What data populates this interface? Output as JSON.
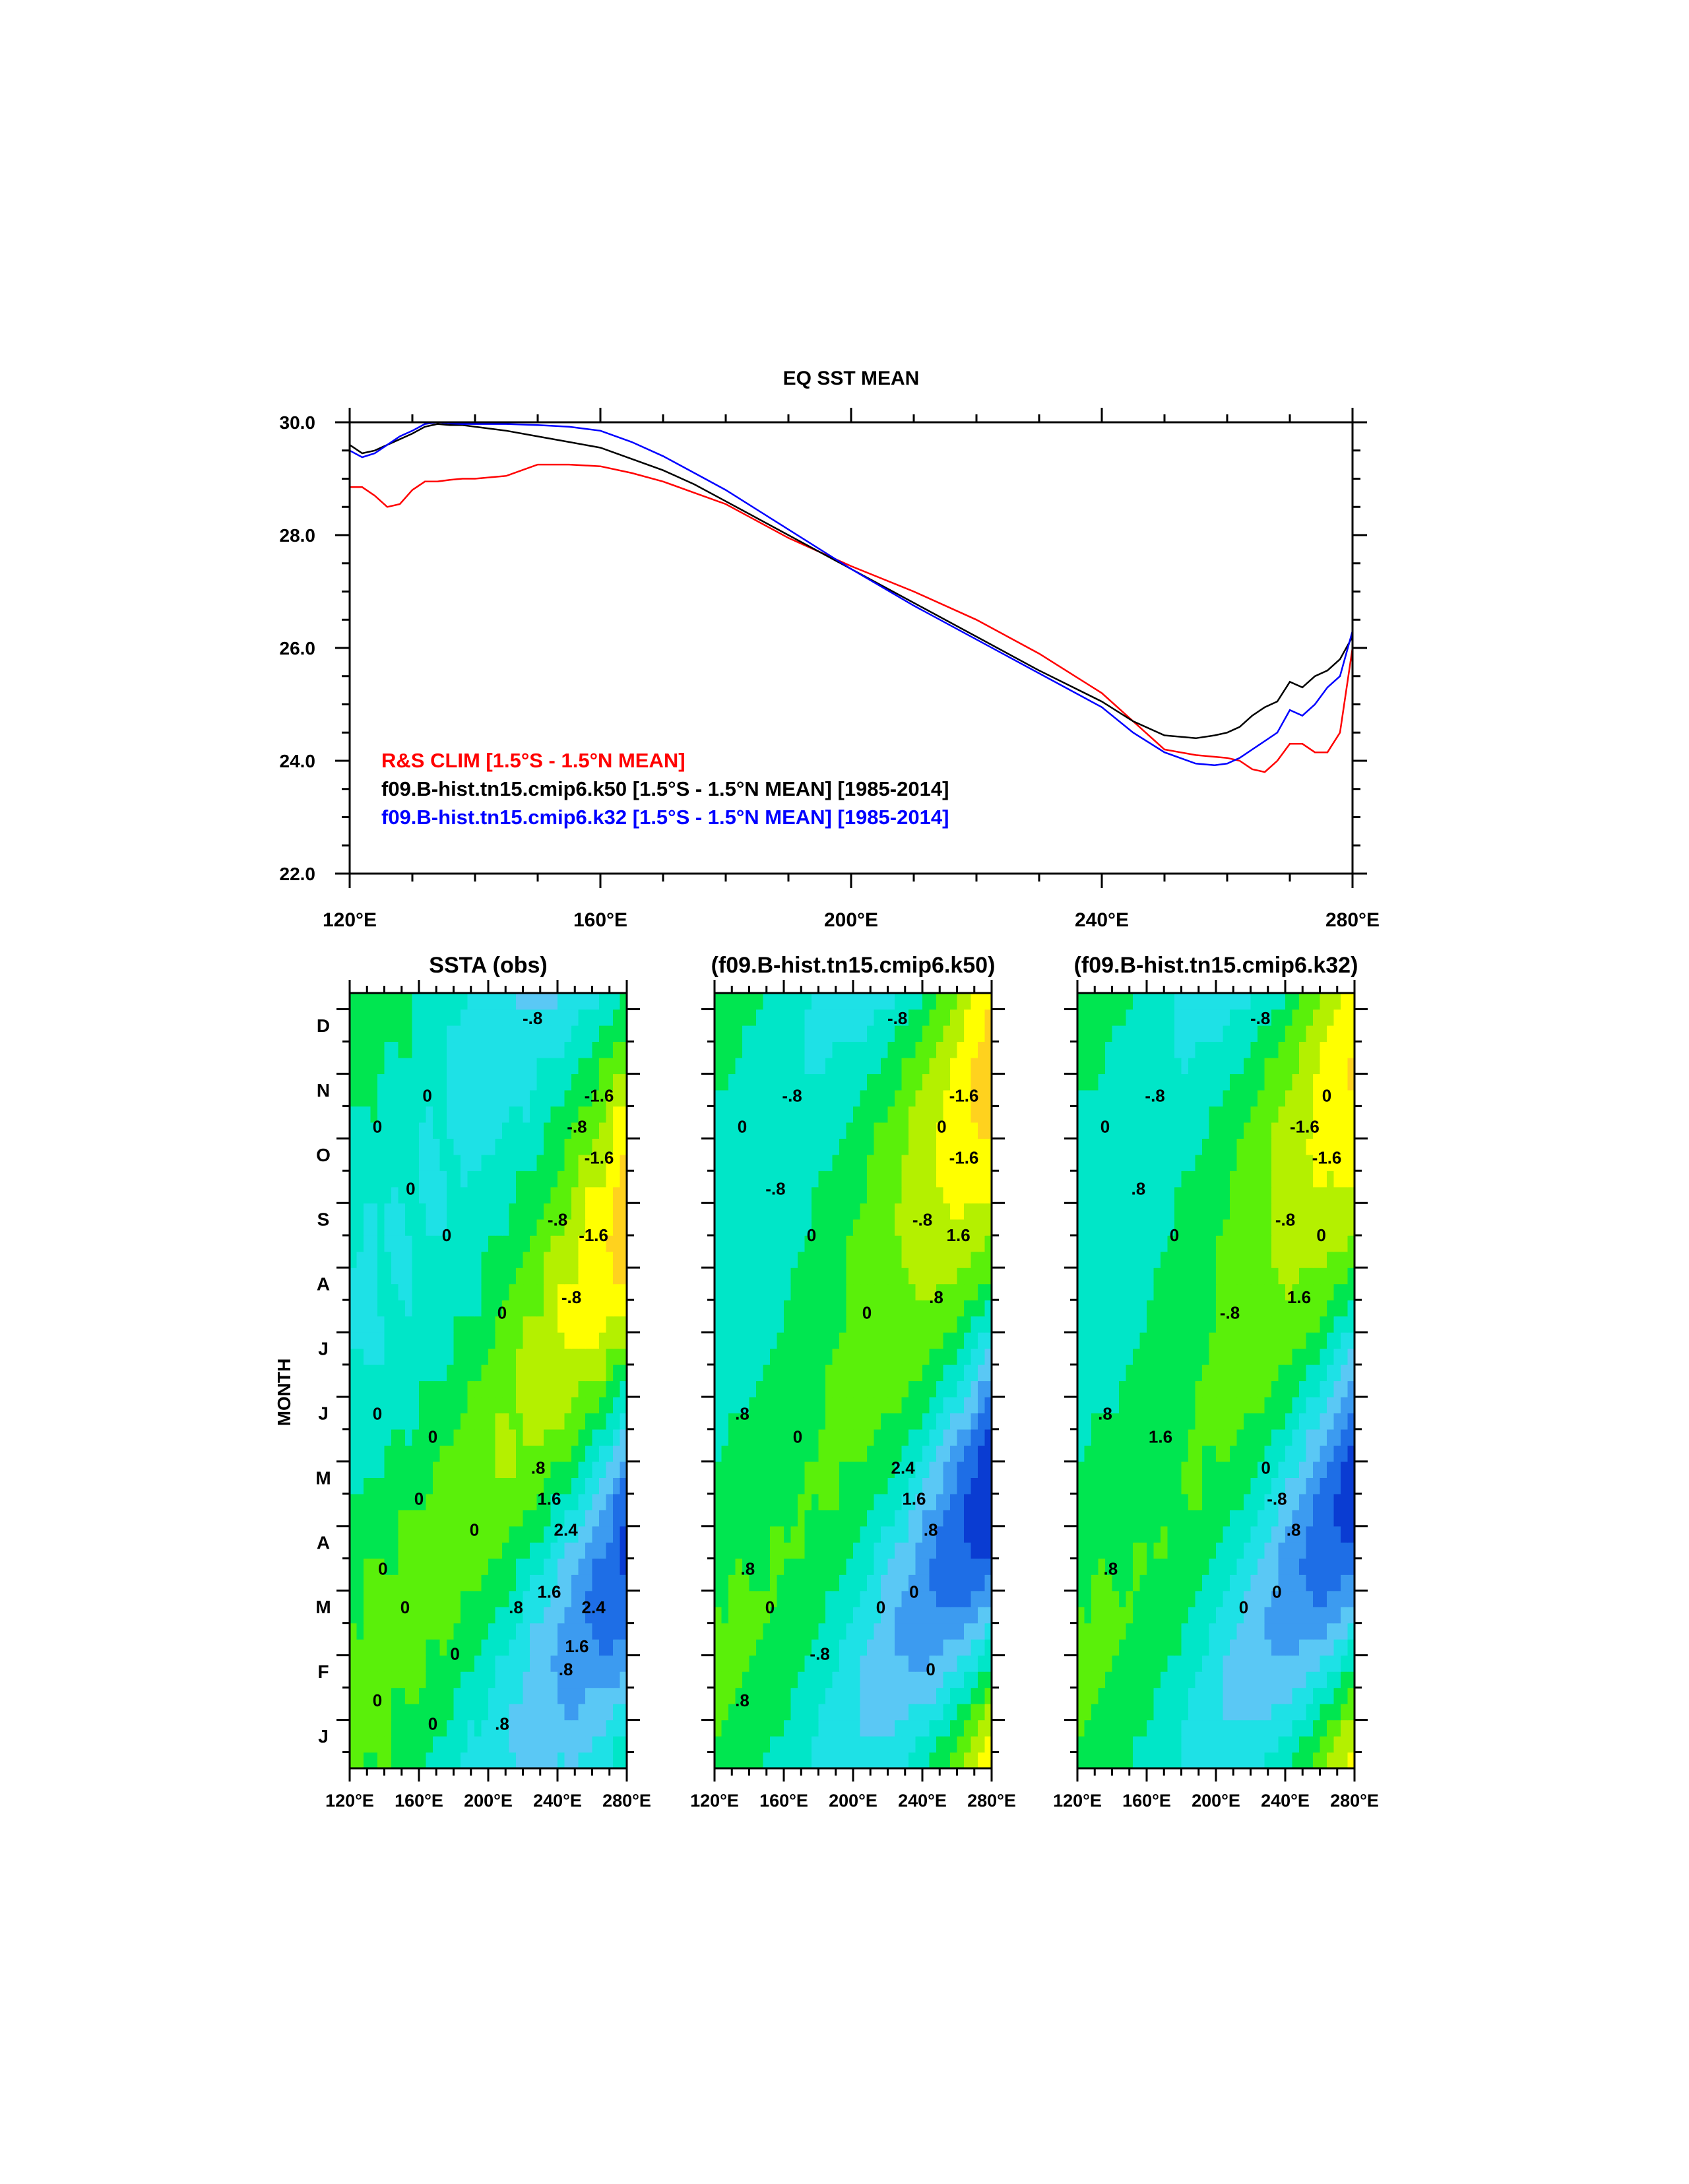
{
  "chart_data": [
    {
      "type": "line",
      "title": "EQ SST MEAN",
      "xlabel": "",
      "ylabel": "",
      "xlim": [
        120,
        280
      ],
      "ylim": [
        22,
        30
      ],
      "x_ticks": [
        "120°E",
        "160°E",
        "200°E",
        "240°E",
        "280°E"
      ],
      "y_ticks": [
        "22.0",
        "24.0",
        "26.0",
        "28.0",
        "30.0"
      ],
      "legend_position": "bottom-left",
      "series": [
        {
          "name": "R&S CLIM [1.5°S - 1.5°N MEAN]",
          "color": "#ff0000",
          "x": [
            120,
            122,
            124,
            126,
            128,
            130,
            132,
            134,
            136,
            138,
            140,
            145,
            150,
            155,
            160,
            165,
            170,
            175,
            180,
            190,
            200,
            210,
            220,
            230,
            240,
            245,
            250,
            255,
            260,
            262,
            264,
            266,
            268,
            270,
            272,
            274,
            276,
            278,
            280
          ],
          "values": [
            28.85,
            28.85,
            28.7,
            28.5,
            28.55,
            28.8,
            28.95,
            28.95,
            28.98,
            29.0,
            29.0,
            29.05,
            29.25,
            29.25,
            29.22,
            29.1,
            28.95,
            28.75,
            28.55,
            27.95,
            27.45,
            27.0,
            26.5,
            25.9,
            25.2,
            24.7,
            24.2,
            24.1,
            24.05,
            24.0,
            23.85,
            23.8,
            24.0,
            24.3,
            24.3,
            24.15,
            24.15,
            24.5,
            26.0
          ]
        },
        {
          "name": "f09.B-hist.tn15.cmip6.k50 [1.5°S - 1.5°N MEAN] [1985-2014]",
          "color": "#000000",
          "x": [
            120,
            122,
            124,
            126,
            128,
            130,
            132,
            134,
            136,
            138,
            140,
            145,
            150,
            155,
            160,
            165,
            170,
            175,
            180,
            190,
            200,
            210,
            220,
            230,
            240,
            245,
            250,
            255,
            258,
            260,
            262,
            264,
            266,
            268,
            270,
            272,
            274,
            276,
            278,
            280
          ],
          "values": [
            29.6,
            29.45,
            29.5,
            29.6,
            29.7,
            29.8,
            29.92,
            29.97,
            29.95,
            29.95,
            29.92,
            29.85,
            29.75,
            29.65,
            29.55,
            29.35,
            29.15,
            28.9,
            28.6,
            28.0,
            27.4,
            26.8,
            26.2,
            25.6,
            25.05,
            24.7,
            24.45,
            24.4,
            24.45,
            24.5,
            24.6,
            24.8,
            24.95,
            25.05,
            25.4,
            25.3,
            25.5,
            25.6,
            25.8,
            26.2
          ]
        },
        {
          "name": "f09.B-hist.tn15.cmip6.k32 [1.5°S - 1.5°N MEAN] [1985-2014]",
          "color": "#0000ff",
          "x": [
            120,
            122,
            124,
            126,
            128,
            130,
            132,
            134,
            136,
            138,
            140,
            145,
            150,
            155,
            160,
            165,
            170,
            175,
            180,
            190,
            200,
            210,
            220,
            230,
            240,
            245,
            250,
            255,
            258,
            260,
            262,
            264,
            266,
            268,
            270,
            272,
            274,
            276,
            278,
            280
          ],
          "values": [
            29.5,
            29.38,
            29.45,
            29.6,
            29.75,
            29.85,
            29.97,
            30.0,
            29.98,
            29.97,
            29.97,
            29.97,
            29.95,
            29.92,
            29.85,
            29.65,
            29.4,
            29.1,
            28.8,
            28.1,
            27.4,
            26.75,
            26.15,
            25.55,
            24.95,
            24.5,
            24.15,
            23.95,
            23.92,
            23.95,
            24.05,
            24.2,
            24.35,
            24.5,
            24.9,
            24.8,
            25.0,
            25.3,
            25.5,
            26.3
          ]
        }
      ]
    },
    {
      "type": "heatmap",
      "title": "SSTA (obs)",
      "xlabel": "",
      "ylabel": "MONTH",
      "xlim": [
        120,
        280
      ],
      "x_ticks": [
        "120°E",
        "160°E",
        "200°E",
        "240°E",
        "280°E"
      ],
      "y_ticks": [
        "J",
        "F",
        "M",
        "A",
        "M",
        "J",
        "J",
        "A",
        "S",
        "O",
        "N",
        "D"
      ],
      "contour_labels": [
        "-.8",
        "0",
        "-.8",
        "-1.6",
        "-1.6",
        "-.8",
        "0",
        "0",
        "0",
        "0",
        "-.8",
        "0",
        "0",
        "0",
        "-1.6",
        ".8",
        "1.6",
        "2.4",
        ".8",
        "1.6",
        "0",
        "0",
        "0",
        ".8",
        "2.4",
        "1.6",
        "0",
        "0",
        ".8",
        "0"
      ],
      "anomaly": {
        "amp": 1.4,
        "phase_month": 2.5,
        "offset": 0.2,
        "amp2": 0.5,
        "wave_noise": 0.35
      }
    },
    {
      "type": "heatmap",
      "title": "(f09.B-hist.tn15.cmip6.k50)",
      "xlabel": "",
      "ylabel": "",
      "xlim": [
        120,
        280
      ],
      "x_ticks": [
        "120°E",
        "160°E",
        "200°E",
        "240°E",
        "280°E"
      ],
      "y_ticks": [
        "J",
        "F",
        "M",
        "A",
        "M",
        "J",
        "J",
        "A",
        "S",
        "O",
        "N",
        "D"
      ],
      "contour_labels": [
        "-.8",
        "-.8",
        "0",
        "-1.6",
        "-1.6",
        "-.8",
        "0",
        "0",
        "-.8",
        "0",
        ".8",
        ".8",
        "0",
        ".8",
        "1.6",
        "2.4",
        "1.6",
        ".8",
        "0",
        "0",
        "0",
        "-.8",
        ".8",
        "0"
      ],
      "anomaly": {
        "amp": 1.55,
        "phase_month": 4.0,
        "offset": 0.3,
        "amp2": 0.7,
        "wave_noise": 0.15
      }
    },
    {
      "type": "heatmap",
      "title": "(f09.B-hist.tn15.cmip6.k32)",
      "xlabel": "",
      "ylabel": "",
      "xlim": [
        120,
        280
      ],
      "x_ticks": [
        "120°E",
        "160°E",
        "200°E",
        "240°E",
        "280°E"
      ],
      "y_ticks": [
        "J",
        "F",
        "M",
        "A",
        "M",
        "J",
        "J",
        "A",
        "S",
        "O",
        "N",
        "D"
      ],
      "contour_labels": [
        "-.8",
        "-.8",
        "-1.6",
        "0",
        "-1.6",
        "-.8",
        "0",
        "0",
        ".8",
        "-.8",
        "1.6",
        ".8",
        "1.6",
        ".8",
        "0",
        "0",
        "-.8",
        ".8",
        "0",
        "0"
      ],
      "anomaly": {
        "amp": 1.45,
        "phase_month": 4.0,
        "offset": 0.35,
        "amp2": 0.7,
        "wave_noise": 0.15
      }
    }
  ],
  "contour_levels": [
    -2.4,
    -2.0,
    -1.6,
    -1.2,
    -0.8,
    -0.4,
    0,
    0.4,
    0.8,
    1.2,
    1.6,
    2.0,
    2.4,
    2.8
  ],
  "contour_colors": [
    "#0a00c8",
    "#0a3cd2",
    "#1e6ee6",
    "#3c9bf0",
    "#5ac8f5",
    "#1ee1e6",
    "#00e6c8",
    "#00e650",
    "#5af00a",
    "#b4f000",
    "#ffff00",
    "#ffd21e",
    "#ffa028",
    "#f06e1e",
    "#dc0000"
  ]
}
